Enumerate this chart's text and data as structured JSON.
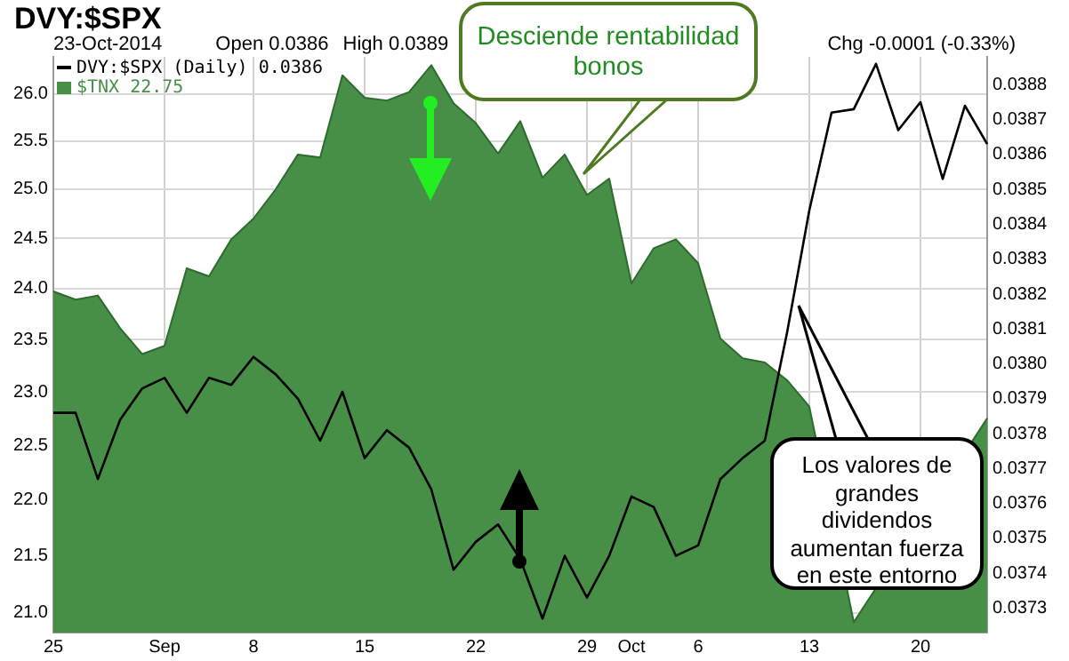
{
  "chart_data": {
    "type": "line",
    "title": "DVY:$SPX",
    "annotations": [
      "23-Oct-2014",
      "Open 0.0386",
      "High 0.0389",
      "Chg -0.0001 (-0.33%)",
      "Desciende rentabilidad bonos",
      "Los valores de grandes dividendos aumentan fuerza en este entorno"
    ],
    "categories": [
      "25",
      null,
      null,
      null,
      null,
      "Sep",
      null,
      null,
      null,
      "8",
      null,
      null,
      null,
      null,
      "15",
      null,
      null,
      null,
      null,
      "22",
      null,
      null,
      null,
      null,
      "29",
      null,
      "Oct",
      null,
      null,
      "6",
      null,
      null,
      null,
      null,
      "13",
      null,
      null,
      null,
      null,
      "20",
      null,
      null,
      null
    ],
    "series": [
      {
        "name": "$TNX 22.75",
        "type": "area",
        "axis": "y",
        "color": "#478f47",
        "values": [
          23.97,
          23.89,
          23.93,
          23.61,
          23.36,
          23.44,
          24.2,
          24.12,
          24.49,
          24.7,
          25.0,
          25.36,
          25.33,
          26.2,
          25.96,
          25.93,
          26.02,
          26.31,
          25.9,
          25.69,
          25.37,
          25.71,
          25.12,
          25.36,
          24.94,
          25.11,
          24.05,
          24.4,
          24.49,
          24.25,
          23.51,
          23.32,
          23.28,
          23.11,
          22.86,
          null,
          20.92,
          null,
          null,
          null,
          null,
          null,
          22.75
        ]
      },
      {
        "name": "DVY:$SPX (Daily) 0.0386",
        "type": "line",
        "axis": "y2",
        "color": "#000000",
        "values": [
          0.03786,
          0.03786,
          0.03767,
          0.03784,
          0.03793,
          0.03796,
          0.03786,
          0.03796,
          0.03794,
          0.03802,
          0.03797,
          0.0379,
          0.03778,
          0.03792,
          0.03773,
          0.03781,
          0.03776,
          0.03764,
          0.03741,
          0.03749,
          0.03754,
          0.03744,
          0.03727,
          0.03745,
          0.03733,
          0.03745,
          0.03762,
          0.03759,
          0.03745,
          0.03748,
          0.03767,
          0.03773,
          0.03778,
          0.03809,
          0.03844,
          0.03872,
          0.03873,
          0.03886,
          0.03867,
          0.03875,
          0.03853,
          0.03874,
          0.03863
        ]
      }
    ],
    "ylim": [
      20.83,
      26.4
    ],
    "log": "y",
    "yticks": [
      {
        "value": 21,
        "label": "21.0"
      },
      21.5,
      {
        "value": 22,
        "label": "22.0"
      },
      22.5,
      {
        "value": 23,
        "label": "23.0"
      },
      23.5,
      {
        "value": 24,
        "label": "24.0"
      },
      24.5,
      {
        "value": 25,
        "label": "25.0"
      },
      25.5,
      {
        "value": 26,
        "label": "26.0"
      }
    ],
    "y2lim": [
      0.03723,
      0.03888
    ],
    "y2ticks": [
      0.0373,
      0.0374,
      0.0375,
      0.0376,
      0.0377,
      0.0378,
      0.0379,
      {
        "value": 0.038,
        "label": "0.0380"
      },
      0.0381,
      0.0382,
      0.0383,
      0.0384,
      0.0385,
      0.0386,
      0.0387,
      0.0388
    ],
    "grid": true,
    "legend": "top left",
    "marker": "none",
    "line_style": "solid"
  }
}
